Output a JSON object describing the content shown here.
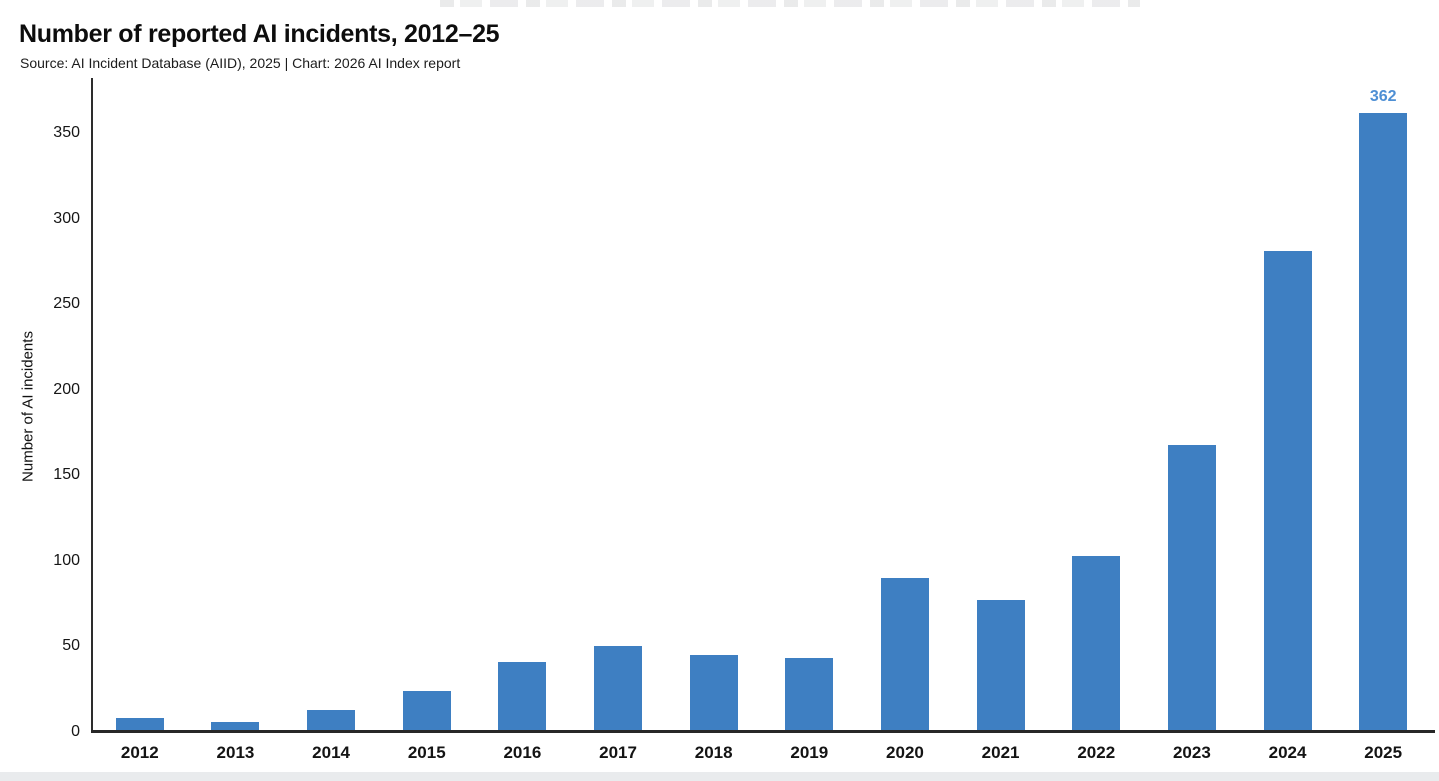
{
  "header": {
    "title": "Number of reported AI incidents, 2012–25",
    "subtitle": "Source: AI Incident Database (AIID), 2025 | Chart: 2026 AI Index report"
  },
  "chart_data": {
    "type": "bar",
    "title": "Number of reported AI incidents, 2012–25",
    "subtitle": "Source: AI Incident Database (AIID), 2025 | Chart: 2026 AI Index report",
    "categories": [
      "2012",
      "2013",
      "2014",
      "2015",
      "2016",
      "2017",
      "2018",
      "2019",
      "2020",
      "2021",
      "2022",
      "2023",
      "2024",
      "2025"
    ],
    "values": [
      8,
      6,
      13,
      24,
      41,
      50,
      45,
      43,
      90,
      77,
      103,
      168,
      281,
      362
    ],
    "xlabel": "",
    "ylabel": "Number of AI incidents",
    "yticks": [
      0,
      50,
      100,
      150,
      200,
      250,
      300,
      350
    ],
    "ylim": [
      0,
      381
    ],
    "grid": false,
    "legend": "none",
    "bar_color": "#3e7fc2",
    "data_labels": [
      {
        "category": "2025",
        "text": "362",
        "color": "#4e8fd4"
      }
    ]
  }
}
